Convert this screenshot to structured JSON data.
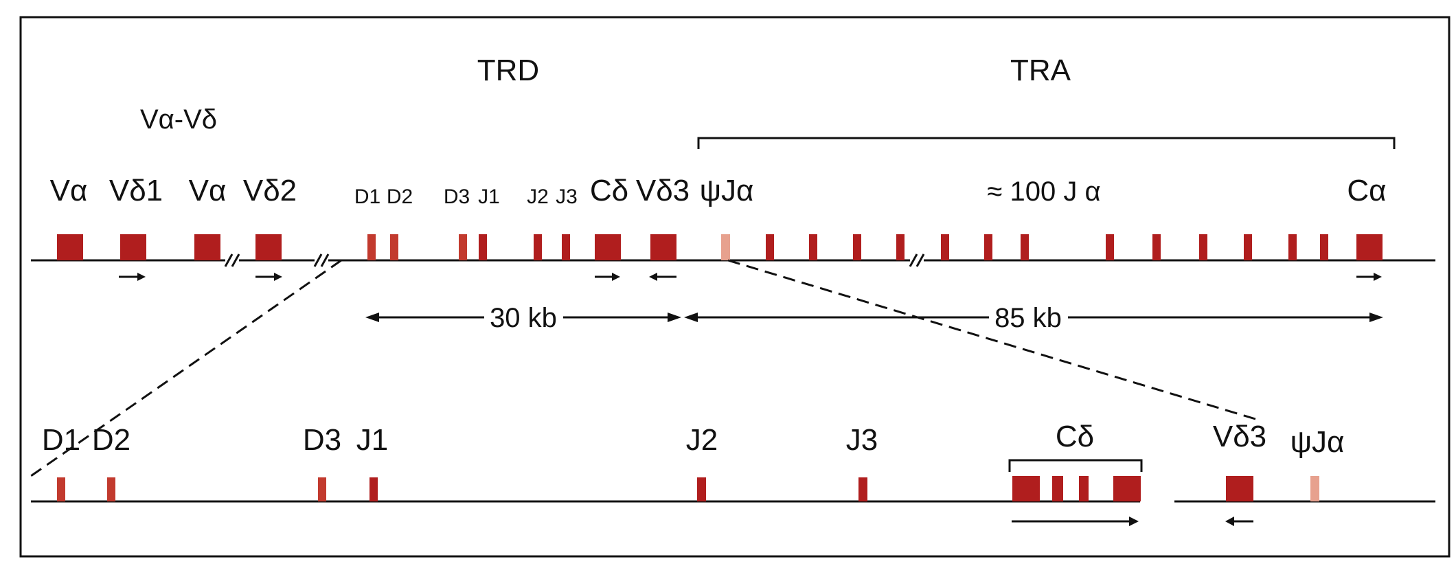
{
  "colors": {
    "segment": "#b01e1e",
    "segment_dark": "#8f1414",
    "pseudo_segment": "#e7a18e",
    "line": "#111111",
    "background": "#ffffff"
  },
  "locus_labels": {
    "trd": "TRD",
    "tra": "TRA",
    "va_vd": "Vα-Vδ"
  },
  "top_row": {
    "labels": {
      "va_1": "Vα",
      "vd1": "Vδ1",
      "va_2": "Vα",
      "vd2": "Vδ2",
      "d1": "D1",
      "d2": "D2",
      "d3": "D3",
      "j1": "J1",
      "j2": "J2",
      "j3": "J3",
      "cd": "Cδ",
      "vd3": "Vδ3",
      "psi_ja": "ψJα",
      "ja_cluster": "≈ 100 J α",
      "ca": "Cα"
    }
  },
  "distances": {
    "trd_span": "30 kb",
    "tra_span": "85 kb"
  },
  "bottom_row": {
    "labels": {
      "d1": "D1",
      "d2": "D2",
      "d3": "D3",
      "j1": "J1",
      "j2": "J2",
      "j3": "J3",
      "cd": "Cδ",
      "vd3": "Vδ3",
      "psi_ja": "ψJα"
    }
  }
}
